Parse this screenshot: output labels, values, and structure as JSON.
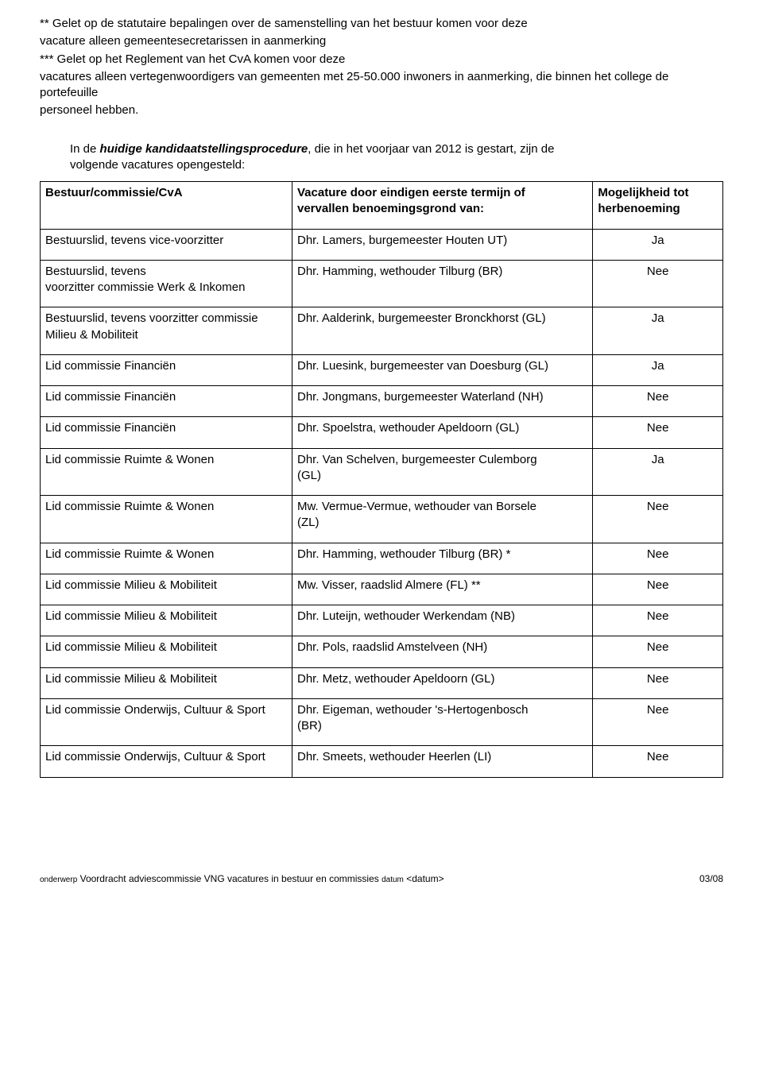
{
  "intro": {
    "p1": "**  Gelet op de statutaire bepalingen over de samenstelling van het bestuur komen voor deze",
    "p2": "vacature alleen gemeentesecretarissen in aanmerking",
    "p3": "*** Gelet op het Reglement van het CvA komen voor deze",
    "p4": "vacatures alleen vertegenwoordigers van gemeenten met 25-50.000 inwoners in aanmerking, die binnen het college de portefeuille",
    "p5": "personeel hebben."
  },
  "block2": {
    "prefix": "In de ",
    "em": "huidige kandidaatstellingsprocedure",
    "rest": ", die in het voorjaar van 2012 is gestart, zijn de",
    "line2": "volgende vacatures opengesteld:"
  },
  "headers": {
    "c1": "Bestuur/commissie/CvA",
    "c2a": "Vacature door eindigen eerste termijn of",
    "c2b": "vervallen benoemingsgrond van:",
    "c3a": "Mogelijkheid tot",
    "c3b": "herbenoeming"
  },
  "rows": [
    {
      "c1": "Bestuurslid, tevens vice-voorzitter",
      "c2": "Dhr. Lamers, burgemeester Houten UT)",
      "c3": "Ja"
    },
    {
      "c1a": "Bestuurslid, tevens",
      "c1b": "voorzitter commissie Werk & Inkomen",
      "c2": "Dhr. Hamming, wethouder Tilburg (BR)",
      "c3": "Nee"
    },
    {
      "c1a": "Bestuurslid, tevens voorzitter commissie",
      "c1b": "Milieu & Mobiliteit",
      "c2": "Dhr. Aalderink, burgemeester Bronckhorst (GL)",
      "c3": "Ja"
    },
    {
      "c1": "Lid commissie Financiën",
      "c2": "Dhr. Luesink, burgemeester van Doesburg (GL)",
      "c3": "Ja"
    },
    {
      "c1": "Lid commissie Financiën",
      "c2": "Dhr. Jongmans, burgemeester Waterland (NH)",
      "c3": "Nee"
    },
    {
      "c1": "Lid commissie Financiën",
      "c2": "Dhr. Spoelstra, wethouder Apeldoorn (GL)",
      "c3": "Nee"
    },
    {
      "c1": "Lid commissie Ruimte & Wonen",
      "c2a": "Dhr. Van Schelven, burgemeester Culemborg",
      "c2b": "(GL)",
      "c3": "Ja"
    },
    {
      "c1": "Lid commissie Ruimte & Wonen",
      "c2a": "Mw. Vermue-Vermue, wethouder van Borsele",
      "c2b": "(ZL)",
      "c3": "Nee"
    },
    {
      "c1": "Lid commissie Ruimte & Wonen",
      "c2": "Dhr. Hamming, wethouder Tilburg (BR) *",
      "c3": "Nee"
    },
    {
      "c1": "Lid commissie Milieu & Mobiliteit",
      "c2": "Mw. Visser, raadslid Almere (FL) **",
      "c3": "Nee"
    },
    {
      "c1": "Lid commissie Milieu & Mobiliteit",
      "c2": "Dhr. Luteijn, wethouder Werkendam (NB)",
      "c3": "Nee"
    },
    {
      "c1": "Lid commissie Milieu & Mobiliteit",
      "c2": "Dhr. Pols, raadslid Amstelveen (NH)",
      "c3": "Nee"
    },
    {
      "c1": "Lid commissie Milieu & Mobiliteit",
      "c2": "Dhr. Metz, wethouder Apeldoorn (GL)",
      "c3": "Nee"
    },
    {
      "c1": "Lid commissie Onderwijs, Cultuur & Sport",
      "c2a": "Dhr. Eigeman, wethouder 's-Hertogenbosch",
      "c2b": "(BR)",
      "c3": "Nee"
    },
    {
      "c1": "Lid commissie Onderwijs, Cultuur & Sport",
      "c2": "Dhr. Smeets, wethouder Heerlen (LI)",
      "c3": "Nee"
    }
  ],
  "footer": {
    "label1": "onderwerp",
    "text1": " Voordracht adviescommissie VNG vacatures in bestuur en commissies ",
    "label2": "datum",
    "text2": " <datum>",
    "page": "03/08"
  }
}
